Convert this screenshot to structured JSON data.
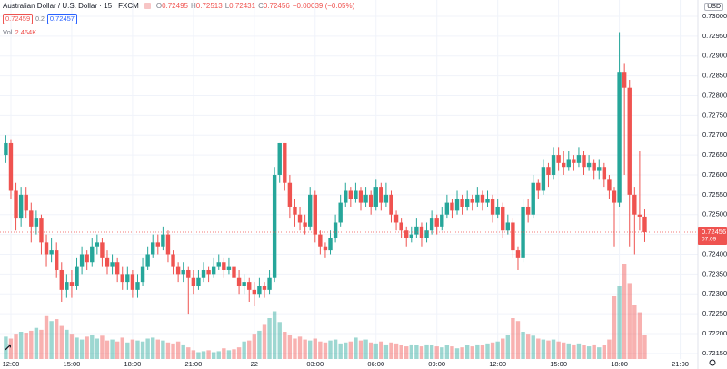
{
  "chart_data": {
    "type": "candlestick",
    "header": {
      "symbol": "Australian Dollar / U.S. Dollar · 15 · FXCM",
      "ohlc": [
        {
          "key": "O",
          "value": "0.72495"
        },
        {
          "key": "H",
          "value": "0.72513"
        },
        {
          "key": "L",
          "value": "0.72431"
        },
        {
          "key": "C",
          "value": "0.72456"
        }
      ],
      "change": "−0.00039 (−0.05%)",
      "sell": "0.72459",
      "spread": "0.2",
      "buy": "0.72457",
      "volume_key": "Vol",
      "volume_value": "2.464K"
    },
    "currency": "USD",
    "last_price_label": "0.72456",
    "countdown": "07:09",
    "up_color": "#26a69a",
    "down_color": "#ef5350",
    "grid": true,
    "categories": [
      null,
      "12:00",
      null,
      null,
      null,
      null,
      null,
      null,
      null,
      null,
      null,
      null,
      null,
      "15:00",
      null,
      null,
      null,
      null,
      null,
      null,
      null,
      null,
      null,
      null,
      null,
      "18:00",
      null,
      null,
      null,
      null,
      null,
      null,
      null,
      null,
      null,
      null,
      null,
      "21:00",
      null,
      null,
      null,
      null,
      null,
      null,
      null,
      null,
      null,
      null,
      null,
      "22",
      null,
      null,
      null,
      null,
      null,
      null,
      null,
      null,
      null,
      null,
      null,
      "03:00",
      null,
      null,
      null,
      null,
      null,
      null,
      null,
      null,
      null,
      null,
      null,
      "06:00",
      null,
      null,
      null,
      null,
      null,
      null,
      null,
      null,
      null,
      null,
      null,
      "09:00",
      null,
      null,
      null,
      null,
      null,
      null,
      null,
      null,
      null,
      null,
      null,
      "12:00",
      null,
      null,
      null,
      null,
      null,
      null,
      null,
      null,
      null,
      null,
      null,
      "15:00",
      null,
      null,
      null,
      null,
      null,
      null,
      null,
      null,
      null,
      null,
      null,
      "18:00",
      null,
      null,
      null,
      null,
      null,
      null,
      null,
      null,
      null,
      null,
      null,
      "21:00"
    ],
    "open": [
      0.7265,
      0.7268,
      0.7256,
      0.7249,
      0.7255,
      0.7251,
      0.7247,
      0.7249,
      0.7243,
      0.724,
      0.7241,
      0.7236,
      0.7231,
      0.7233,
      0.7232,
      0.7237,
      0.724,
      0.7238,
      0.7242,
      0.7243,
      0.7239,
      0.7237,
      0.7238,
      0.7235,
      0.7233,
      0.7235,
      0.7231,
      0.7233,
      0.7237,
      0.724,
      0.7243,
      0.7242,
      0.7245,
      0.724,
      0.7237,
      0.7235,
      0.7236,
      0.7234,
      0.7232,
      0.7234,
      0.7236,
      0.7235,
      0.7237,
      0.7238,
      0.7236,
      0.7237,
      0.7234,
      0.7232,
      0.7233,
      0.7231,
      0.723,
      0.7232,
      0.7231,
      0.7234,
      0.726,
      0.7268,
      0.7258,
      0.7252,
      0.725,
      0.7248,
      0.7247,
      0.7255,
      0.7245,
      0.7242,
      0.7241,
      0.7244,
      0.7248,
      0.7253,
      0.7256,
      0.7254,
      0.7256,
      0.7253,
      0.7255,
      0.7252,
      0.7257,
      0.7253,
      0.7255,
      0.725,
      0.7248,
      0.7246,
      0.7244,
      0.7245,
      0.7247,
      0.7244,
      0.7246,
      0.7249,
      0.7247,
      0.725,
      0.7253,
      0.7251,
      0.7254,
      0.7252,
      0.7254,
      0.7253,
      0.7255,
      0.7253,
      0.7254,
      0.725,
      0.7252,
      0.7246,
      0.7248,
      0.7241,
      0.7239,
      0.7252,
      0.725,
      0.7258,
      0.7256,
      0.7262,
      0.726,
      0.7265,
      0.7263,
      0.7262,
      0.7264,
      0.7263,
      0.7265,
      0.7262,
      0.7263,
      0.7261,
      0.7262,
      0.7259,
      0.7256,
      0.7253,
      0.7286,
      0.7282,
      0.7255,
      0.725,
      0.72495,
      null,
      null,
      null,
      null,
      null,
      null,
      null
    ],
    "high": [
      0.727,
      0.7269,
      0.7258,
      0.7257,
      0.7257,
      0.7253,
      0.7251,
      0.725,
      0.7245,
      0.7244,
      0.7243,
      0.7238,
      0.7235,
      0.7236,
      0.7239,
      0.7242,
      0.7241,
      0.7244,
      0.7245,
      0.7244,
      0.7241,
      0.724,
      0.7239,
      0.7237,
      0.7237,
      0.7236,
      0.7235,
      0.7239,
      0.7242,
      0.7245,
      0.7245,
      0.7247,
      0.7246,
      0.7241,
      0.7238,
      0.7238,
      0.7237,
      0.7236,
      0.7236,
      0.7238,
      0.7237,
      0.7239,
      0.724,
      0.7239,
      0.7239,
      0.7238,
      0.7236,
      0.7235,
      0.7234,
      0.7233,
      0.7234,
      0.7233,
      0.7236,
      0.7262,
      0.7268,
      0.7268,
      0.726,
      0.7254,
      0.7252,
      0.725,
      0.7257,
      0.7256,
      0.7246,
      0.7243,
      0.7246,
      0.725,
      0.7255,
      0.7258,
      0.7257,
      0.7258,
      0.7257,
      0.7257,
      0.7256,
      0.7259,
      0.7258,
      0.7258,
      0.7256,
      0.7251,
      0.7249,
      0.7247,
      0.7247,
      0.7249,
      0.7248,
      0.7248,
      0.7251,
      0.725,
      0.7252,
      0.7255,
      0.7254,
      0.7256,
      0.7255,
      0.7256,
      0.7255,
      0.7257,
      0.7256,
      0.7256,
      0.7255,
      0.7254,
      0.7253,
      0.725,
      0.7249,
      0.7242,
      0.7254,
      0.7254,
      0.726,
      0.7259,
      0.7264,
      0.7263,
      0.7267,
      0.7267,
      0.7266,
      0.7266,
      0.7265,
      0.7267,
      0.7266,
      0.7265,
      0.7264,
      0.7264,
      0.7263,
      0.726,
      0.7257,
      0.7296,
      0.7288,
      0.7284,
      0.7257,
      0.7266,
      0.72513,
      null,
      null,
      null,
      null,
      null,
      null,
      null
    ],
    "low": [
      0.7263,
      0.7254,
      0.7246,
      0.7247,
      0.7249,
      0.7243,
      0.7245,
      0.724,
      0.7237,
      0.7238,
      0.7234,
      0.7228,
      0.7229,
      0.7229,
      0.7231,
      0.7235,
      0.7236,
      0.7237,
      0.724,
      0.7237,
      0.7235,
      0.7235,
      0.7233,
      0.7231,
      0.7231,
      0.7229,
      0.7229,
      0.7232,
      0.7236,
      0.7239,
      0.724,
      0.7241,
      0.7238,
      0.7235,
      0.7233,
      0.7233,
      0.7225,
      0.723,
      0.7231,
      0.7233,
      0.7233,
      0.7234,
      0.7236,
      0.7234,
      0.7235,
      0.7232,
      0.723,
      0.723,
      0.7228,
      0.7227,
      0.7229,
      0.7229,
      0.723,
      0.7233,
      0.7258,
      0.7256,
      0.7249,
      0.7247,
      0.7246,
      0.7245,
      0.7246,
      0.7243,
      0.724,
      0.7239,
      0.724,
      0.7243,
      0.7247,
      0.7252,
      0.7252,
      0.7253,
      0.7251,
      0.7252,
      0.725,
      0.7251,
      0.7251,
      0.7252,
      0.7248,
      0.7246,
      0.7244,
      0.7242,
      0.7243,
      0.7244,
      0.7242,
      0.7243,
      0.7245,
      0.7245,
      0.7246,
      0.7249,
      0.7249,
      0.725,
      0.725,
      0.7251,
      0.7251,
      0.7252,
      0.7251,
      0.7252,
      0.7248,
      0.7249,
      0.7244,
      0.7245,
      0.7239,
      0.7236,
      0.7238,
      0.7248,
      0.7249,
      0.7254,
      0.7255,
      0.7257,
      0.7259,
      0.7261,
      0.726,
      0.7261,
      0.7261,
      0.7262,
      0.726,
      0.7261,
      0.7259,
      0.7259,
      0.7257,
      0.7254,
      0.7242,
      0.7252,
      0.726,
      0.7242,
      0.724,
      0.7246,
      0.72431,
      null,
      null,
      null,
      null,
      null,
      null,
      null
    ],
    "close": [
      0.7268,
      0.7256,
      0.7249,
      0.7255,
      0.7251,
      0.7247,
      0.7249,
      0.7243,
      0.724,
      0.7241,
      0.7236,
      0.7231,
      0.7233,
      0.7232,
      0.7237,
      0.724,
      0.7238,
      0.7242,
      0.7243,
      0.7239,
      0.7237,
      0.7238,
      0.7235,
      0.7233,
      0.7235,
      0.7231,
      0.7233,
      0.7237,
      0.724,
      0.7243,
      0.7242,
      0.7245,
      0.724,
      0.7237,
      0.7235,
      0.7236,
      0.7234,
      0.7232,
      0.7234,
      0.7236,
      0.7235,
      0.7237,
      0.7238,
      0.7236,
      0.7237,
      0.7234,
      0.7232,
      0.7233,
      0.7231,
      0.723,
      0.7232,
      0.7231,
      0.7234,
      0.726,
      0.7268,
      0.7258,
      0.7252,
      0.725,
      0.7248,
      0.7247,
      0.7255,
      0.7245,
      0.7242,
      0.7241,
      0.7244,
      0.7248,
      0.7253,
      0.7256,
      0.7254,
      0.7256,
      0.7253,
      0.7255,
      0.7252,
      0.7257,
      0.7253,
      0.7255,
      0.725,
      0.7248,
      0.7246,
      0.7244,
      0.7245,
      0.7247,
      0.7244,
      0.7246,
      0.7249,
      0.7247,
      0.725,
      0.7253,
      0.7251,
      0.7254,
      0.7252,
      0.7254,
      0.7253,
      0.7255,
      0.7253,
      0.7254,
      0.725,
      0.7252,
      0.7246,
      0.7248,
      0.7241,
      0.7239,
      0.7252,
      0.725,
      0.7258,
      0.7256,
      0.7262,
      0.726,
      0.7265,
      0.7263,
      0.7262,
      0.7264,
      0.7263,
      0.7265,
      0.7262,
      0.7263,
      0.7261,
      0.7262,
      0.7259,
      0.7256,
      0.7253,
      0.7286,
      0.7282,
      0.7255,
      0.725,
      0.72495,
      0.72456,
      null,
      null,
      null,
      null,
      null,
      null,
      null
    ],
    "volume": [
      2300,
      2100,
      2600,
      2800,
      2700,
      2900,
      3200,
      3000,
      4500,
      3900,
      4100,
      3400,
      3000,
      2600,
      2200,
      2000,
      2300,
      2500,
      2100,
      2400,
      1900,
      2000,
      1800,
      2200,
      1700,
      2000,
      1900,
      1800,
      2100,
      2200,
      2000,
      1900,
      1700,
      1600,
      1800,
      1500,
      1200,
      900,
      700,
      800,
      900,
      700,
      800,
      1100,
      900,
      1000,
      1200,
      1800,
      1900,
      2600,
      2900,
      3600,
      4200,
      4900,
      3800,
      2800,
      2500,
      2100,
      2300,
      2000,
      1900,
      2100,
      1800,
      1700,
      1900,
      2000,
      1600,
      1700,
      1800,
      2200,
      1900,
      2000,
      1700,
      1600,
      1800,
      1500,
      1700,
      1600,
      1400,
      1300,
      1500,
      1400,
      1300,
      1500,
      1400,
      1300,
      1200,
      1400,
      1300,
      1100,
      1200,
      1400,
      1300,
      1500,
      1400,
      1600,
      1700,
      1800,
      2100,
      2500,
      4200,
      3900,
      2800,
      2600,
      2400,
      2100,
      2000,
      1900,
      2000,
      1800,
      1700,
      1600,
      1500,
      1600,
      1400,
      1300,
      1500,
      1200,
      1400,
      2000,
      6500,
      7500,
      9800,
      7800,
      5600,
      4800,
      2464,
      null,
      null,
      null,
      null,
      null,
      null,
      null
    ],
    "ylim": [
      0.72136,
      0.73041
    ],
    "yticks": [
      {
        "value": 0.7215,
        "label": "0.72150"
      },
      {
        "value": 0.722,
        "label": "0.72200"
      },
      {
        "value": 0.7225,
        "label": "0.72250"
      },
      {
        "value": 0.723,
        "label": "0.72300"
      },
      {
        "value": 0.7235,
        "label": "0.72350"
      },
      {
        "value": 0.724,
        "label": "0.72400"
      },
      {
        "value": 0.7245,
        "label": "0.72450"
      },
      {
        "value": 0.725,
        "label": "0.72500"
      },
      {
        "value": 0.7255,
        "label": "0.72550"
      },
      {
        "value": 0.726,
        "label": "0.72600"
      },
      {
        "value": 0.7265,
        "label": "0.72650"
      },
      {
        "value": 0.727,
        "label": "0.72700"
      },
      {
        "value": 0.7275,
        "label": "0.72750"
      },
      {
        "value": 0.728,
        "label": "0.72800"
      },
      {
        "value": 0.7285,
        "label": "0.72850"
      },
      {
        "value": 0.729,
        "label": "0.72900"
      },
      {
        "value": 0.7295,
        "label": "0.72950"
      },
      {
        "value": 0.73,
        "label": "0.73000"
      }
    ]
  }
}
